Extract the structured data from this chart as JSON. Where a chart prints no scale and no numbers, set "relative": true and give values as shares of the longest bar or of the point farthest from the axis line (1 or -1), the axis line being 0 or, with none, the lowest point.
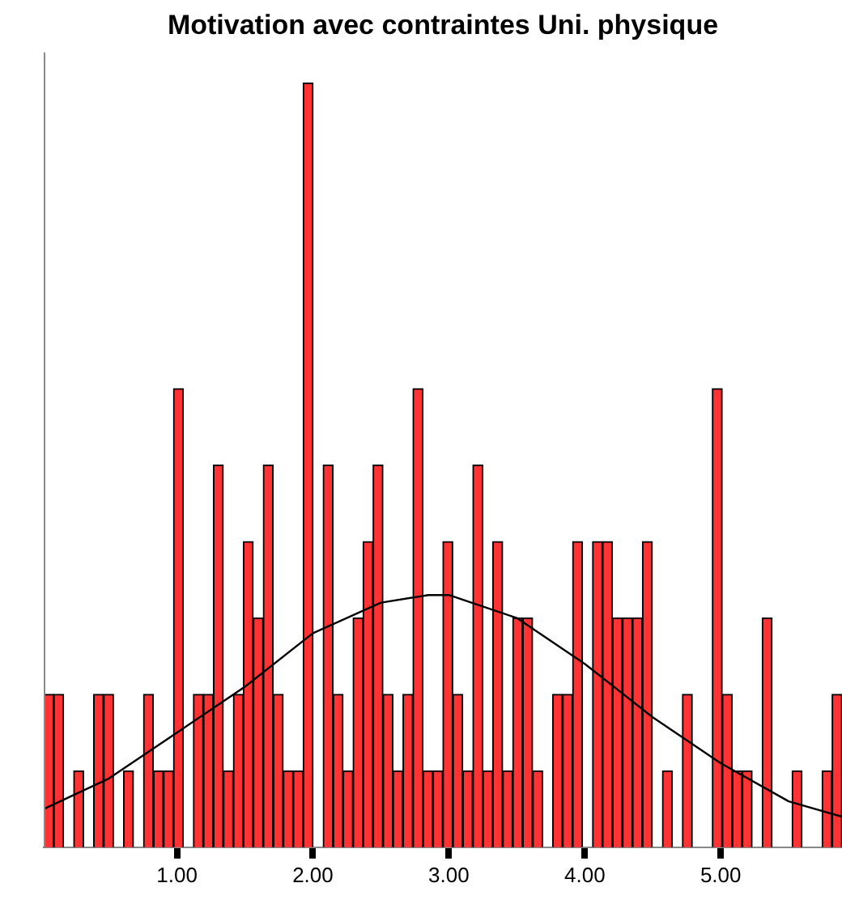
{
  "chart_data": {
    "type": "histogram",
    "title": "Motivation avec contraintes Uni. physique",
    "relative": true,
    "color": "#ff3333",
    "bins": [
      0.02,
      0.093,
      0.167,
      0.24,
      0.314,
      0.387,
      0.46,
      0.534,
      0.607,
      0.681,
      0.754,
      0.827,
      0.901,
      0.974,
      1.048,
      1.121,
      1.194,
      1.268,
      1.341,
      1.415,
      1.488,
      1.561,
      1.635,
      1.708,
      1.782,
      1.855,
      1.928,
      2.002,
      2.075,
      2.149,
      2.222,
      2.295,
      2.369,
      2.442,
      2.516,
      2.589,
      2.662,
      2.736,
      2.809,
      2.883,
      2.956,
      3.029,
      3.103,
      3.176,
      3.25,
      3.323,
      3.396,
      3.47,
      3.543,
      3.617,
      3.69,
      3.763,
      3.837,
      3.91,
      3.984,
      4.057,
      4.13,
      4.204,
      4.277,
      4.351,
      4.424,
      4.497,
      4.571,
      4.644,
      4.718,
      4.791,
      4.864,
      4.938,
      5.011,
      5.085,
      5.158,
      5.231,
      5.305,
      5.378,
      5.452,
      5.525,
      5.598,
      5.672,
      5.745,
      5.819,
      5.892
    ],
    "values": [
      0.2,
      0.2,
      0,
      0.1,
      0,
      0.2,
      0.2,
      0,
      0.1,
      0,
      0.2,
      0.1,
      0.1,
      0.6,
      0,
      0.2,
      0.2,
      0.5,
      0.1,
      0.2,
      0.4,
      0.3,
      0.5,
      0.2,
      0.1,
      0.1,
      1,
      0,
      0.5,
      0.2,
      0.1,
      0.3,
      0.4,
      0.5,
      0.2,
      0.1,
      0.2,
      0.6,
      0.1,
      0.1,
      0.4,
      0.2,
      0.1,
      0.5,
      0.1,
      0.4,
      0.1,
      0.3,
      0.3,
      0.1,
      0,
      0.2,
      0.2,
      0.4,
      0,
      0.4,
      0.4,
      0.3,
      0.3,
      0.3,
      0.4,
      0,
      0.1,
      0,
      0.2,
      0,
      0,
      0.6,
      0.2,
      0.1,
      0.1,
      0,
      0.3,
      0,
      0,
      0.1,
      0,
      0,
      0.1,
      0.2
    ],
    "series": [
      {
        "type": "line",
        "color": "#000000",
        "x": [
          0.02,
          0.5,
          1,
          1.5,
          2,
          2.5,
          2.85,
          3,
          3.5,
          4,
          4.5,
          5,
          5.5,
          5.892
        ],
        "values": [
          0.05,
          0.09,
          0.15,
          0.21,
          0.28,
          0.32,
          0.33,
          0.33,
          0.3,
          0.24,
          0.17,
          0.11,
          0.06,
          0.04
        ]
      }
    ],
    "xlim": [
      0.02,
      5.892
    ],
    "xticks": [
      {
        "value": 1,
        "label": "1.00"
      },
      {
        "value": 2,
        "label": "2.00"
      },
      {
        "value": 3,
        "label": "3.00"
      },
      {
        "value": 4,
        "label": "4.00"
      },
      {
        "value": 5,
        "label": "5.00"
      }
    ],
    "grid": false,
    "legend": false,
    "marker": "none",
    "line_style": "solid"
  }
}
